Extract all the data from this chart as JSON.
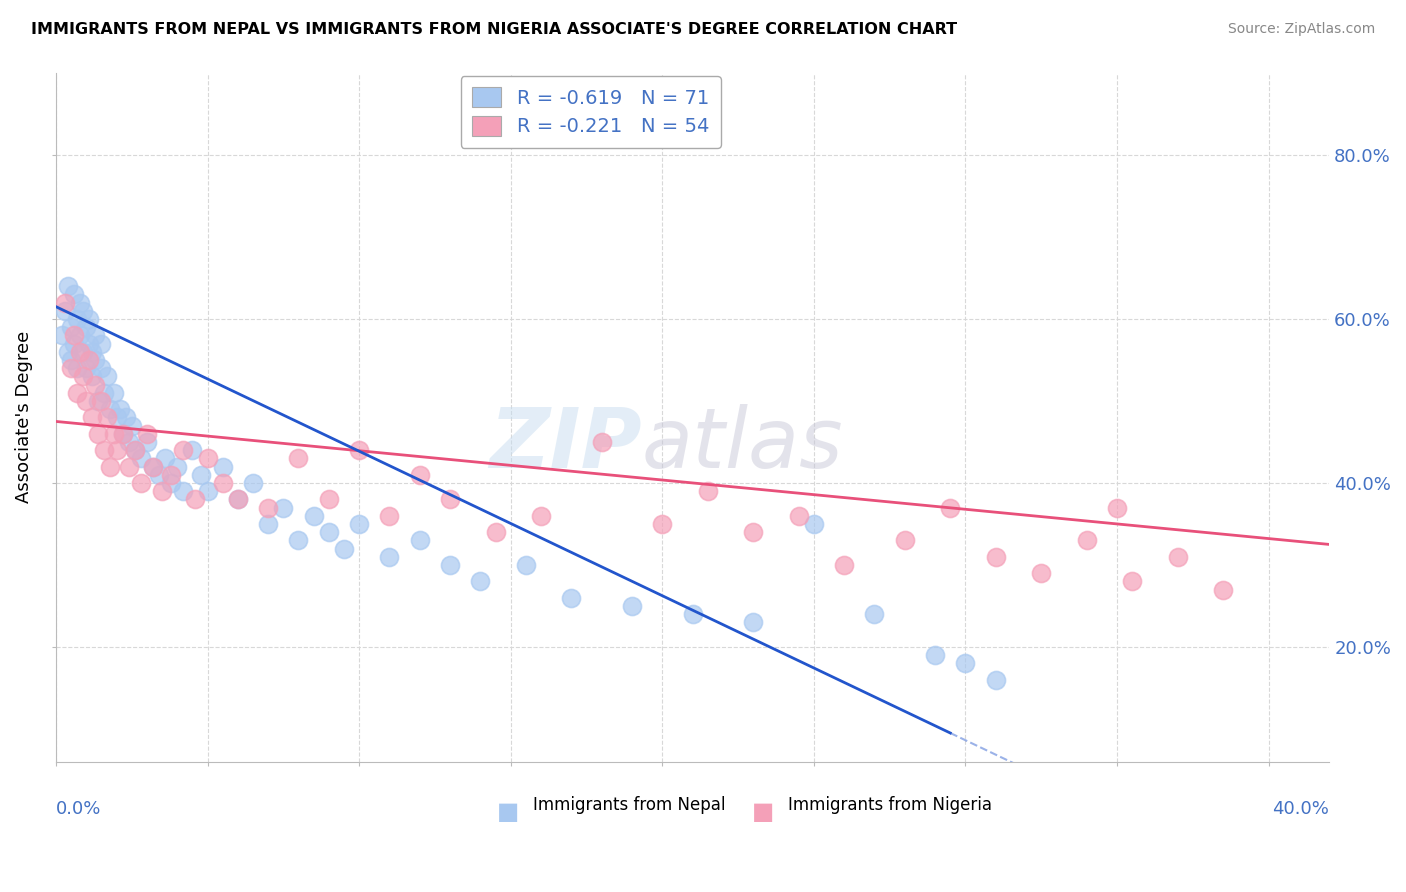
{
  "title": "IMMIGRANTS FROM NEPAL VS IMMIGRANTS FROM NIGERIA ASSOCIATE'S DEGREE CORRELATION CHART",
  "source": "Source: ZipAtlas.com",
  "ylabel": "Associate's Degree",
  "y_tick_values": [
    0.2,
    0.4,
    0.6,
    0.8
  ],
  "x_range": [
    0.0,
    0.42
  ],
  "y_range": [
    0.06,
    0.9
  ],
  "nepal_color": "#a8c8f0",
  "nigeria_color": "#f4a0b8",
  "nepal_line_color": "#2255cc",
  "nigeria_line_color": "#e8507a",
  "nepal_R": -0.619,
  "nepal_N": 71,
  "nigeria_R": -0.221,
  "nigeria_N": 54,
  "nepal_line_x0": 0.0,
  "nepal_line_y0": 0.615,
  "nepal_line_x1": 0.295,
  "nepal_line_y1": 0.095,
  "nepal_line_solid_end": 0.295,
  "nepal_line_dash_end": 0.42,
  "nigeria_line_x0": 0.0,
  "nigeria_line_y0": 0.475,
  "nigeria_line_x1": 0.42,
  "nigeria_line_y1": 0.325,
  "nepal_scatter_x": [
    0.002,
    0.003,
    0.004,
    0.004,
    0.005,
    0.005,
    0.006,
    0.006,
    0.007,
    0.007,
    0.008,
    0.008,
    0.009,
    0.009,
    0.01,
    0.01,
    0.011,
    0.011,
    0.012,
    0.012,
    0.013,
    0.013,
    0.014,
    0.015,
    0.015,
    0.016,
    0.017,
    0.018,
    0.019,
    0.02,
    0.021,
    0.022,
    0.023,
    0.024,
    0.025,
    0.026,
    0.028,
    0.03,
    0.032,
    0.034,
    0.036,
    0.038,
    0.04,
    0.042,
    0.045,
    0.048,
    0.05,
    0.055,
    0.06,
    0.065,
    0.07,
    0.075,
    0.08,
    0.085,
    0.09,
    0.095,
    0.1,
    0.11,
    0.12,
    0.13,
    0.14,
    0.155,
    0.17,
    0.19,
    0.21,
    0.23,
    0.25,
    0.27,
    0.29,
    0.3,
    0.31
  ],
  "nepal_scatter_y": [
    0.58,
    0.61,
    0.56,
    0.64,
    0.59,
    0.55,
    0.63,
    0.57,
    0.6,
    0.54,
    0.62,
    0.58,
    0.56,
    0.61,
    0.59,
    0.54,
    0.57,
    0.6,
    0.53,
    0.56,
    0.55,
    0.58,
    0.5,
    0.54,
    0.57,
    0.51,
    0.53,
    0.49,
    0.51,
    0.48,
    0.49,
    0.46,
    0.48,
    0.45,
    0.47,
    0.44,
    0.43,
    0.45,
    0.42,
    0.41,
    0.43,
    0.4,
    0.42,
    0.39,
    0.44,
    0.41,
    0.39,
    0.42,
    0.38,
    0.4,
    0.35,
    0.37,
    0.33,
    0.36,
    0.34,
    0.32,
    0.35,
    0.31,
    0.33,
    0.3,
    0.28,
    0.3,
    0.26,
    0.25,
    0.24,
    0.23,
    0.35,
    0.24,
    0.19,
    0.18,
    0.16
  ],
  "nigeria_scatter_x": [
    0.003,
    0.005,
    0.006,
    0.007,
    0.008,
    0.009,
    0.01,
    0.011,
    0.012,
    0.013,
    0.014,
    0.015,
    0.016,
    0.017,
    0.018,
    0.019,
    0.02,
    0.022,
    0.024,
    0.026,
    0.028,
    0.03,
    0.032,
    0.035,
    0.038,
    0.042,
    0.046,
    0.05,
    0.055,
    0.06,
    0.07,
    0.08,
    0.09,
    0.1,
    0.11,
    0.12,
    0.13,
    0.145,
    0.16,
    0.18,
    0.2,
    0.215,
    0.23,
    0.245,
    0.26,
    0.28,
    0.295,
    0.31,
    0.325,
    0.34,
    0.355,
    0.37,
    0.385,
    0.35
  ],
  "nigeria_scatter_y": [
    0.62,
    0.54,
    0.58,
    0.51,
    0.56,
    0.53,
    0.5,
    0.55,
    0.48,
    0.52,
    0.46,
    0.5,
    0.44,
    0.48,
    0.42,
    0.46,
    0.44,
    0.46,
    0.42,
    0.44,
    0.4,
    0.46,
    0.42,
    0.39,
    0.41,
    0.44,
    0.38,
    0.43,
    0.4,
    0.38,
    0.37,
    0.43,
    0.38,
    0.44,
    0.36,
    0.41,
    0.38,
    0.34,
    0.36,
    0.45,
    0.35,
    0.39,
    0.34,
    0.36,
    0.3,
    0.33,
    0.37,
    0.31,
    0.29,
    0.33,
    0.28,
    0.31,
    0.27,
    0.37
  ]
}
